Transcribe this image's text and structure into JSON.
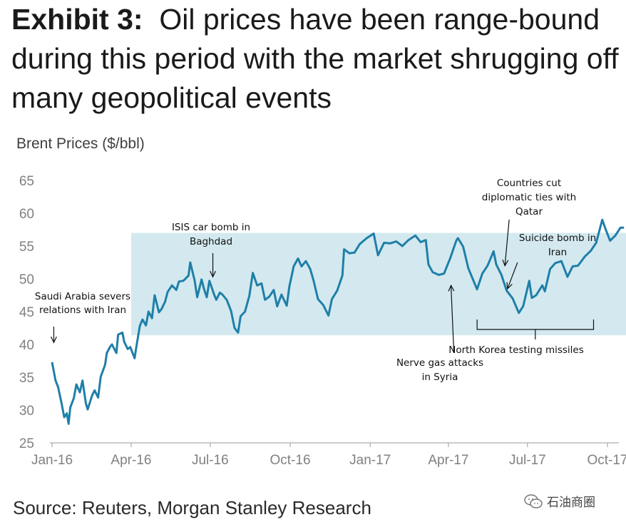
{
  "header": {
    "exhibit": "Exhibit 3:",
    "title": "Oil prices have been range-bound during this period with the market shrugging off many geopolitical events"
  },
  "source": "Source: Reuters, Morgan Stanley Research",
  "watermark": {
    "text": "石油商圈",
    "icon": "wechat-icon"
  },
  "chart_data": {
    "type": "line",
    "ylabel": "Brent Prices ($/bbl)",
    "xlabel": "",
    "ylim": [
      25,
      65
    ],
    "yticks": [
      25,
      30,
      35,
      40,
      45,
      50,
      55,
      60,
      65
    ],
    "xlim": [
      "2016-01-01",
      "2017-10-25"
    ],
    "xticks": [
      {
        "label": "Jan-16",
        "date": "2016-01-01"
      },
      {
        "label": "Apr-16",
        "date": "2016-04-01"
      },
      {
        "label": "Jul-16",
        "date": "2016-07-01"
      },
      {
        "label": "Oct-16",
        "date": "2016-10-01"
      },
      {
        "label": "Jan-17",
        "date": "2017-01-01"
      },
      {
        "label": "Apr-17",
        "date": "2017-04-01"
      },
      {
        "label": "Jul-17",
        "date": "2017-07-01"
      },
      {
        "label": "Oct-17",
        "date": "2017-10-01"
      }
    ],
    "grid": false,
    "range_band": {
      "x_start": "2016-04-01",
      "x_end": "2017-10-25",
      "y_low": 41.4,
      "y_high": 57.0,
      "color": "#d3e9ef"
    },
    "series": [
      {
        "color": "#1f7fa8",
        "points": [
          [
            "2016-01-01",
            37.3
          ],
          [
            "2016-01-05",
            34.5
          ],
          [
            "2016-01-08",
            33.5
          ],
          [
            "2016-01-12",
            31.0
          ],
          [
            "2016-01-15",
            28.9
          ],
          [
            "2016-01-18",
            29.5
          ],
          [
            "2016-01-20",
            27.9
          ],
          [
            "2016-01-22",
            30.4
          ],
          [
            "2016-01-26",
            31.8
          ],
          [
            "2016-01-29",
            33.9
          ],
          [
            "2016-02-02",
            32.7
          ],
          [
            "2016-02-05",
            34.5
          ],
          [
            "2016-02-09",
            31.0
          ],
          [
            "2016-02-11",
            30.1
          ],
          [
            "2016-02-16",
            32.2
          ],
          [
            "2016-02-19",
            33.0
          ],
          [
            "2016-02-23",
            31.9
          ],
          [
            "2016-02-26",
            35.1
          ],
          [
            "2016-03-02",
            36.9
          ],
          [
            "2016-03-04",
            38.7
          ],
          [
            "2016-03-08",
            39.7
          ],
          [
            "2016-03-10",
            40.0
          ],
          [
            "2016-03-15",
            38.7
          ],
          [
            "2016-03-17",
            41.5
          ],
          [
            "2016-03-22",
            41.8
          ],
          [
            "2016-03-24",
            40.4
          ],
          [
            "2016-03-28",
            39.3
          ],
          [
            "2016-03-31",
            39.6
          ],
          [
            "2016-04-05",
            37.9
          ],
          [
            "2016-04-07",
            39.7
          ],
          [
            "2016-04-11",
            42.8
          ],
          [
            "2016-04-14",
            43.8
          ],
          [
            "2016-04-18",
            42.9
          ],
          [
            "2016-04-21",
            45.0
          ],
          [
            "2016-04-25",
            44.0
          ],
          [
            "2016-04-28",
            47.5
          ],
          [
            "2016-05-03",
            44.9
          ],
          [
            "2016-05-06",
            45.4
          ],
          [
            "2016-05-10",
            46.5
          ],
          [
            "2016-05-13",
            48.0
          ],
          [
            "2016-05-18",
            49.0
          ],
          [
            "2016-05-23",
            48.3
          ],
          [
            "2016-05-26",
            49.6
          ],
          [
            "2016-05-31",
            49.7
          ],
          [
            "2016-06-06",
            50.5
          ],
          [
            "2016-06-08",
            52.5
          ],
          [
            "2016-06-13",
            49.8
          ],
          [
            "2016-06-16",
            47.2
          ],
          [
            "2016-06-21",
            49.9
          ],
          [
            "2016-06-24",
            48.4
          ],
          [
            "2016-06-27",
            47.2
          ],
          [
            "2016-06-30",
            49.7
          ],
          [
            "2016-07-06",
            47.4
          ],
          [
            "2016-07-08",
            46.8
          ],
          [
            "2016-07-12",
            47.9
          ],
          [
            "2016-07-15",
            47.6
          ],
          [
            "2016-07-20",
            46.8
          ],
          [
            "2016-07-25",
            45.1
          ],
          [
            "2016-07-29",
            42.5
          ],
          [
            "2016-08-02",
            41.8
          ],
          [
            "2016-08-05",
            44.3
          ],
          [
            "2016-08-10",
            45.0
          ],
          [
            "2016-08-15",
            47.4
          ],
          [
            "2016-08-19",
            50.9
          ],
          [
            "2016-08-24",
            49.0
          ],
          [
            "2016-08-29",
            49.3
          ],
          [
            "2016-09-02",
            46.8
          ],
          [
            "2016-09-07",
            47.3
          ],
          [
            "2016-09-12",
            48.3
          ],
          [
            "2016-09-16",
            45.8
          ],
          [
            "2016-09-21",
            47.6
          ],
          [
            "2016-09-27",
            45.9
          ],
          [
            "2016-09-30",
            48.8
          ],
          [
            "2016-10-05",
            51.9
          ],
          [
            "2016-10-10",
            53.1
          ],
          [
            "2016-10-14",
            51.9
          ],
          [
            "2016-10-19",
            52.7
          ],
          [
            "2016-10-24",
            51.5
          ],
          [
            "2016-10-28",
            49.7
          ],
          [
            "2016-11-02",
            46.9
          ],
          [
            "2016-11-08",
            46.0
          ],
          [
            "2016-11-14",
            44.4
          ],
          [
            "2016-11-18",
            46.9
          ],
          [
            "2016-11-24",
            48.2
          ],
          [
            "2016-11-30",
            50.5
          ],
          [
            "2016-12-02",
            54.5
          ],
          [
            "2016-12-08",
            53.9
          ],
          [
            "2016-12-14",
            54.0
          ],
          [
            "2016-12-20",
            55.3
          ],
          [
            "2016-12-28",
            56.2
          ],
          [
            "2017-01-05",
            56.9
          ],
          [
            "2017-01-10",
            53.6
          ],
          [
            "2017-01-17",
            55.5
          ],
          [
            "2017-01-24",
            55.4
          ],
          [
            "2017-01-31",
            55.7
          ],
          [
            "2017-02-07",
            55.0
          ],
          [
            "2017-02-14",
            55.9
          ],
          [
            "2017-02-22",
            56.6
          ],
          [
            "2017-02-28",
            55.6
          ],
          [
            "2017-03-06",
            55.9
          ],
          [
            "2017-03-09",
            52.2
          ],
          [
            "2017-03-14",
            51.0
          ],
          [
            "2017-03-21",
            50.6
          ],
          [
            "2017-03-27",
            50.8
          ],
          [
            "2017-04-03",
            53.1
          ],
          [
            "2017-04-10",
            55.8
          ],
          [
            "2017-04-12",
            56.2
          ],
          [
            "2017-04-18",
            54.9
          ],
          [
            "2017-04-24",
            51.6
          ],
          [
            "2017-05-04",
            48.4
          ],
          [
            "2017-05-10",
            50.8
          ],
          [
            "2017-05-16",
            52.0
          ],
          [
            "2017-05-23",
            54.2
          ],
          [
            "2017-05-26",
            52.2
          ],
          [
            "2017-06-01",
            50.6
          ],
          [
            "2017-06-07",
            48.2
          ],
          [
            "2017-06-14",
            47.0
          ],
          [
            "2017-06-21",
            44.8
          ],
          [
            "2017-06-26",
            45.8
          ],
          [
            "2017-07-03",
            49.7
          ],
          [
            "2017-07-06",
            47.1
          ],
          [
            "2017-07-11",
            47.5
          ],
          [
            "2017-07-18",
            49.0
          ],
          [
            "2017-07-21",
            48.1
          ],
          [
            "2017-07-27",
            51.5
          ],
          [
            "2017-08-02",
            52.4
          ],
          [
            "2017-08-09",
            52.7
          ],
          [
            "2017-08-16",
            50.3
          ],
          [
            "2017-08-22",
            51.9
          ],
          [
            "2017-08-28",
            52.0
          ],
          [
            "2017-09-05",
            53.4
          ],
          [
            "2017-09-12",
            54.3
          ],
          [
            "2017-09-18",
            55.5
          ],
          [
            "2017-09-25",
            59.0
          ],
          [
            "2017-09-29",
            57.5
          ],
          [
            "2017-10-04",
            55.8
          ],
          [
            "2017-10-10",
            56.6
          ],
          [
            "2017-10-16",
            57.8
          ],
          [
            "2017-10-20",
            57.8
          ]
        ]
      }
    ],
    "annotations": [
      {
        "id": "saudi",
        "lines": [
          "Saudi Arabia severs",
          "relations with Iran"
        ],
        "arrow_date": "2016-01-03",
        "arrow_y": 40.3
      },
      {
        "id": "isis",
        "lines": [
          "ISIS car bomb in",
          "Baghdad"
        ],
        "arrow_date": "2016-07-04",
        "arrow_y": 50.3
      },
      {
        "id": "nerve",
        "lines": [
          "Nerve gas attacks",
          "in Syria"
        ],
        "arrow_date": "2017-04-04",
        "arrow_y": 49.0
      },
      {
        "id": "qatar",
        "lines": [
          "Countries cut",
          "diplomatic ties with",
          "Qatar"
        ],
        "arrow_date": "2017-06-05",
        "arrow_y": 52.0
      },
      {
        "id": "suicide",
        "lines": [
          "Suicide bomb in",
          "Iran"
        ],
        "arrow_date": "2017-06-08",
        "arrow_y": 48.5
      },
      {
        "id": "korea",
        "lines": [
          "North Korea testing missiles"
        ],
        "bracket_start": "2017-05-04",
        "bracket_end": "2017-09-15"
      }
    ]
  }
}
